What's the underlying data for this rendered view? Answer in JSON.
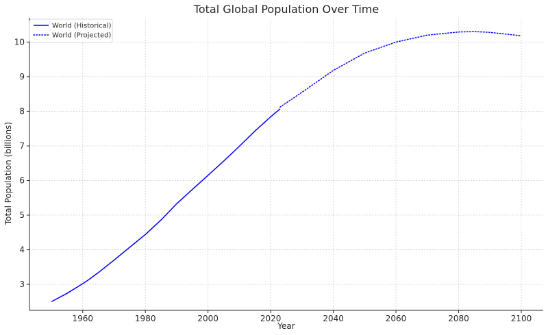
{
  "chart_data": {
    "type": "line",
    "title": "Total Global Population Over Time",
    "xlabel": "Year",
    "ylabel": "Total Population (billions)",
    "xlim": [
      1943,
      2107
    ],
    "ylim": [
      2.25,
      10.7
    ],
    "xticks": [
      1960,
      1980,
      2000,
      2020,
      2040,
      2060,
      2080,
      2100
    ],
    "yticks": [
      3,
      4,
      5,
      6,
      7,
      8,
      9,
      10
    ],
    "grid": true,
    "grid_style": "dotted",
    "legend_position": "top-left",
    "series": [
      {
        "name": "World (Historical)",
        "style": "solid",
        "color": "#0000ff",
        "x": [
          1950,
          1955,
          1960,
          1962,
          1965,
          1970,
          1975,
          1980,
          1985,
          1990,
          1995,
          2000,
          2005,
          2010,
          2015,
          2020,
          2023
        ],
        "y": [
          2.5,
          2.74,
          3.02,
          3.14,
          3.34,
          3.7,
          4.07,
          4.44,
          4.86,
          5.33,
          5.74,
          6.15,
          6.56,
          6.99,
          7.43,
          7.84,
          8.07
        ]
      },
      {
        "name": "World (Projected)",
        "style": "dotted",
        "color": "#0000ff",
        "x": [
          2023,
          2030,
          2040,
          2050,
          2060,
          2070,
          2080,
          2085,
          2090,
          2100
        ],
        "y": [
          8.12,
          8.55,
          9.18,
          9.68,
          10.0,
          10.2,
          10.29,
          10.3,
          10.28,
          10.18
        ]
      }
    ]
  }
}
